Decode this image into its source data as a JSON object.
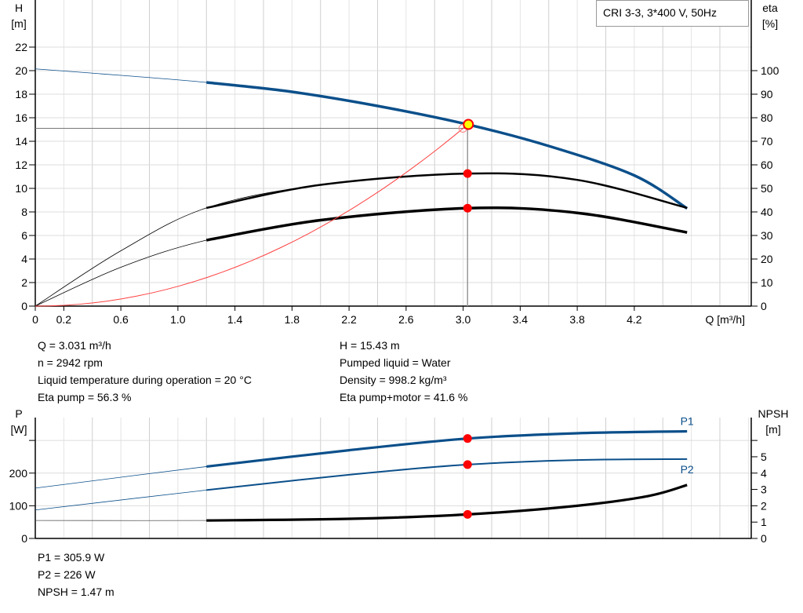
{
  "title_box": "CRI 3-3, 3*400 V, 50Hz",
  "chart_data": [
    {
      "type": "line",
      "name": "performance",
      "xlabel": "Q [m³/h]",
      "ylabel_left": [
        "H",
        "[m]"
      ],
      "ylabel_right": [
        "eta",
        "[%]"
      ],
      "xlim": [
        0,
        5.02
      ],
      "ylim_left": [
        0,
        26
      ],
      "ylim_right": [
        0,
        130
      ],
      "grid": true,
      "x_ticks": [
        0,
        0.2,
        0.6,
        1.0,
        1.4,
        1.8,
        2.2,
        2.6,
        3.0,
        3.4,
        3.8,
        4.2
      ],
      "x_tick_labels": [
        "0",
        "0.2",
        "0.6",
        "1.0",
        "1.4",
        "1.8",
        "2.2",
        "2.6",
        "3.0",
        "3.4",
        "3.8",
        "4.2"
      ],
      "y_left_ticks": [
        0,
        2,
        4,
        6,
        8,
        10,
        12,
        14,
        16,
        18,
        20,
        22
      ],
      "y_right_ticks": [
        0,
        10,
        20,
        30,
        40,
        50,
        60,
        70,
        80,
        90,
        100
      ],
      "operating_range_start": 1.2,
      "series": [
        {
          "id": "H",
          "axis": "left",
          "color": "#0b4f8a",
          "points": [
            [
              0,
              20.15
            ],
            [
              0.6,
              19.6
            ],
            [
              1.2,
              19.0
            ],
            [
              1.8,
              18.2
            ],
            [
              2.4,
              17.0
            ],
            [
              3.031,
              15.43
            ],
            [
              3.6,
              13.6
            ],
            [
              4.2,
              11.1
            ],
            [
              4.57,
              8.3
            ]
          ]
        },
        {
          "id": "eta_pump",
          "axis": "right",
          "color": "#000000",
          "points": [
            [
              0,
              0
            ],
            [
              0.6,
              23.5
            ],
            [
              1.2,
              41.7
            ],
            [
              2.0,
              51.5
            ],
            [
              3.031,
              56.3
            ],
            [
              3.8,
              53.6
            ],
            [
              4.57,
              41.7
            ]
          ]
        },
        {
          "id": "eta_pump_motor",
          "axis": "right",
          "color": "#000000",
          "points": [
            [
              0,
              0
            ],
            [
              0.6,
              16.5
            ],
            [
              1.2,
              28.0
            ],
            [
              2.0,
              36.5
            ],
            [
              3.031,
              41.6
            ],
            [
              3.8,
              39.6
            ],
            [
              4.57,
              31.3
            ]
          ]
        },
        {
          "id": "system_curve",
          "axis": "left",
          "color": "#ff4040",
          "quadratic_to": [
            3.0,
            15.1
          ]
        }
      ],
      "duty_point": {
        "Q": 3.031,
        "H": 15.43,
        "Hsys": 15.1,
        "eta_pump": 56.3,
        "eta_pump_motor": 41.6
      }
    },
    {
      "type": "line",
      "name": "power_npsh",
      "ylabel_left": [
        "P",
        "[W]"
      ],
      "ylabel_right": [
        "NPSH",
        "[m]"
      ],
      "xlim": [
        0,
        5.02
      ],
      "ylim_left": [
        0,
        370
      ],
      "ylim_right": [
        0,
        7.4
      ],
      "grid": true,
      "y_left_ticks": [
        0,
        100,
        200,
        300
      ],
      "y_left_tick_labels": [
        "0",
        "100",
        "200",
        ""
      ],
      "y_right_ticks": [
        0,
        1,
        2,
        3,
        4,
        5,
        6
      ],
      "y_right_tick_labels": [
        "0",
        "1",
        "2",
        "3",
        "4",
        "5",
        ""
      ],
      "series": [
        {
          "id": "P1",
          "name": "P1",
          "axis": "left",
          "color": "#0b4f8a",
          "points": [
            [
              0,
              154
            ],
            [
              1.2,
              220
            ],
            [
              2.2,
              270
            ],
            [
              3.031,
              305.9
            ],
            [
              3.8,
              322
            ],
            [
              4.57,
              328
            ]
          ]
        },
        {
          "id": "P2",
          "name": "P2",
          "axis": "left",
          "color": "#0b4f8a",
          "points": [
            [
              0,
              87
            ],
            [
              1.2,
              148
            ],
            [
              2.2,
              195
            ],
            [
              3.031,
              226
            ],
            [
              3.8,
              240
            ],
            [
              4.57,
              243
            ]
          ]
        },
        {
          "id": "NPSH",
          "axis": "right",
          "color": "#000000",
          "points": [
            [
              0,
              1.1
            ],
            [
              1.2,
              1.1
            ],
            [
              2.2,
              1.2
            ],
            [
              3.031,
              1.47
            ],
            [
              3.8,
              2.0
            ],
            [
              4.3,
              2.6
            ],
            [
              4.57,
              3.27
            ]
          ]
        }
      ],
      "duty_point": {
        "Q": 3.031,
        "P1": 305.9,
        "P2": 226,
        "NPSH": 1.47
      }
    }
  ],
  "info_left": [
    "Q = 3.031 m³/h",
    "n = 2942 rpm",
    "Liquid temperature during operation = 20 °C",
    "Eta pump = 56.3 %"
  ],
  "info_right": [
    "H = 15.43 m",
    "Pumped liquid = Water",
    "Density = 998.2 kg/m³",
    "Eta pump+motor = 41.6 %"
  ],
  "info_bottom": [
    "P1 = 305.9 W",
    "P2 = 226 W",
    "NPSH = 1.47 m"
  ],
  "colors": {
    "curve_blue": "#0b4f8a",
    "duty_marker": "#ff0000",
    "duty_marker_fill": "#ffff00",
    "grid": "#d9d9d9"
  }
}
